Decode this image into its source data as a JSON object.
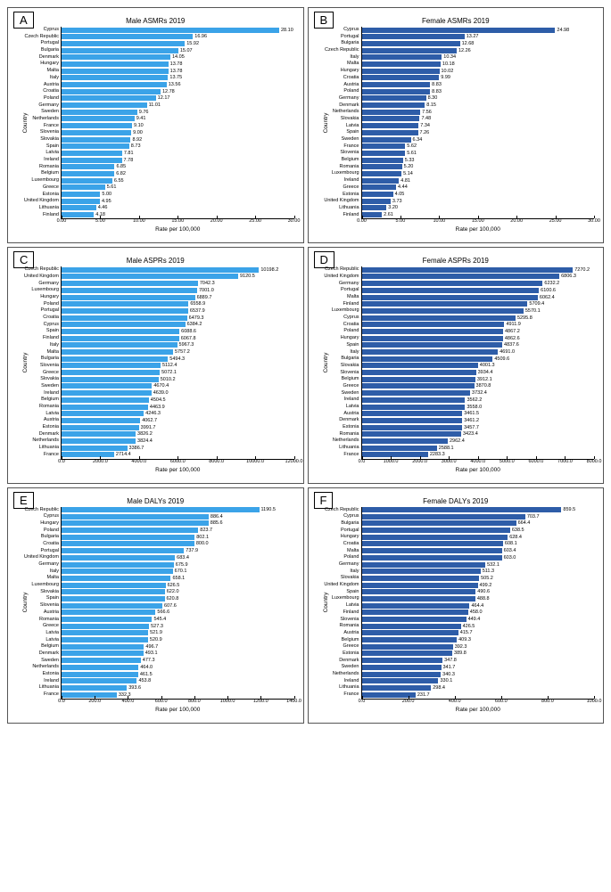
{
  "global": {
    "yaxis_label": "Country",
    "xaxis_label": "Rate per 100,000",
    "bar_color_light": "#3ba3e8",
    "bar_color_dark": "#2e5da8",
    "tick_fontsize": 5.5,
    "title_fontsize": 8,
    "axis_label_fontsize": 6.5
  },
  "panels": [
    {
      "letter": "A",
      "title": "Male ASMRs 2019",
      "bar_color": "#3ba3e8",
      "xmax": 30.0,
      "xtick_step": 5.0,
      "xtick_fmt": "{x:.2f}",
      "val_fmt": "{v:.2f}",
      "data": [
        [
          "Cyprus",
          28.1
        ],
        [
          "Czech Republic",
          16.96
        ],
        [
          "Portugal",
          15.92
        ],
        [
          "Bulgaria",
          15.07
        ],
        [
          "Denmark",
          14.05
        ],
        [
          "Hungary",
          13.78
        ],
        [
          "Malta",
          13.78
        ],
        [
          "Italy",
          13.75
        ],
        [
          "Austria",
          13.56
        ],
        [
          "Croatia",
          12.78
        ],
        [
          "Poland",
          12.17
        ],
        [
          "Germany",
          11.01
        ],
        [
          "Sweden",
          9.76
        ],
        [
          "Netherlands",
          9.41
        ],
        [
          "France",
          9.1
        ],
        [
          "Slovenia",
          9.0
        ],
        [
          "Slovakia",
          8.92
        ],
        [
          "Spain",
          8.73
        ],
        [
          "Latvia",
          7.81
        ],
        [
          "Ireland",
          7.78
        ],
        [
          "Romania",
          6.85
        ],
        [
          "Belgium",
          6.82
        ],
        [
          "Luxembourg",
          6.55
        ],
        [
          "Greece",
          5.61
        ],
        [
          "Estonia",
          5.0
        ],
        [
          "United Kingdom",
          4.95
        ],
        [
          "Lithuania",
          4.46
        ],
        [
          "Finland",
          4.18
        ]
      ]
    },
    {
      "letter": "B",
      "title": "Female ASMRs 2019",
      "bar_color": "#2e5da8",
      "xmax": 30.0,
      "xtick_step": 5.0,
      "xtick_fmt": "{x:.2f}",
      "val_fmt": "{v:.2f}",
      "data": [
        [
          "Cyprus",
          24.98
        ],
        [
          "Portugal",
          13.27
        ],
        [
          "Bulgaria",
          12.68
        ],
        [
          "Czech Republic",
          12.26
        ],
        [
          "Italy",
          10.34
        ],
        [
          "Malta",
          10.18
        ],
        [
          "Hungary",
          10.02
        ],
        [
          "Croatia",
          9.99
        ],
        [
          "Austria",
          8.83
        ],
        [
          "Poland",
          8.83
        ],
        [
          "Germany",
          8.3
        ],
        [
          "Denmark",
          8.15
        ],
        [
          "Netherlands",
          7.56
        ],
        [
          "Slovakia",
          7.48
        ],
        [
          "Latvia",
          7.34
        ],
        [
          "Spain",
          7.26
        ],
        [
          "Sweden",
          6.34
        ],
        [
          "France",
          5.62
        ],
        [
          "Slovenia",
          5.61
        ],
        [
          "Belgium",
          5.33
        ],
        [
          "Romania",
          5.2
        ],
        [
          "Luxembourg",
          5.14
        ],
        [
          "Ireland",
          4.81
        ],
        [
          "Greece",
          4.44
        ],
        [
          "Estonia",
          4.05
        ],
        [
          "United Kingdom",
          3.73
        ],
        [
          "Lithuania",
          3.2
        ],
        [
          "Finland",
          2.61
        ]
      ]
    },
    {
      "letter": "C",
      "title": "Male ASPRs 2019",
      "bar_color": "#3ba3e8",
      "xmax": 12000.0,
      "xtick_step": 2000.0,
      "xtick_fmt": "{x:.1f}",
      "val_fmt": "{v:.1f}",
      "data": [
        [
          "Czech Republic",
          10198.2
        ],
        [
          "United Kingdom",
          9120.5
        ],
        [
          "Germany",
          7042.3
        ],
        [
          "Luxembourg",
          7001.0
        ],
        [
          "Hungary",
          6889.7
        ],
        [
          "Poland",
          6558.9
        ],
        [
          "Portugal",
          6537.9
        ],
        [
          "Croatia",
          6479.3
        ],
        [
          "Cyprus",
          6384.2
        ],
        [
          "Spain",
          6088.6
        ],
        [
          "Finland",
          6067.8
        ],
        [
          "Italy",
          5967.3
        ],
        [
          "Malta",
          5757.2
        ],
        [
          "Bulgaria",
          5494.3
        ],
        [
          "Slovenia",
          5112.4
        ],
        [
          "Greece",
          5072.1
        ],
        [
          "Slovakia",
          5010.2
        ],
        [
          "Sweden",
          4670.4
        ],
        [
          "Ireland",
          4639.0
        ],
        [
          "Belgium",
          4504.5
        ],
        [
          "Romania",
          4463.9
        ],
        [
          "Latvia",
          4246.3
        ],
        [
          "Austria",
          4062.7
        ],
        [
          "Estonia",
          3991.7
        ],
        [
          "Denmark",
          3826.2
        ],
        [
          "Netherlands",
          3824.4
        ],
        [
          "Lithuania",
          3386.7
        ],
        [
          "France",
          2714.4
        ]
      ]
    },
    {
      "letter": "D",
      "title": "Female ASPRs 2019",
      "bar_color": "#2e5da8",
      "xmax": 8000.0,
      "xtick_step": 1000.0,
      "xtick_fmt": "{x:.1f}",
      "val_fmt": "{v:.1f}",
      "data": [
        [
          "Czech Republic",
          7270.2
        ],
        [
          "United Kingdom",
          6806.3
        ],
        [
          "Germany",
          6232.2
        ],
        [
          "Portugal",
          6100.6
        ],
        [
          "Malta",
          6062.4
        ],
        [
          "Finland",
          5709.4
        ],
        [
          "Luxembourg",
          5570.1
        ],
        [
          "Cyprus",
          5295.8
        ],
        [
          "Croatia",
          4911.9
        ],
        [
          "Poland",
          4867.2
        ],
        [
          "Hungary",
          4862.6
        ],
        [
          "Spain",
          4837.6
        ],
        [
          "Italy",
          4691.0
        ],
        [
          "Bulgaria",
          4509.6
        ],
        [
          "Slovakia",
          4001.3
        ],
        [
          "Slovenia",
          3934.4
        ],
        [
          "Belgium",
          3912.1
        ],
        [
          "Greece",
          3870.8
        ],
        [
          "Sweden",
          3732.4
        ],
        [
          "Ireland",
          3562.2
        ],
        [
          "Latvia",
          3558.0
        ],
        [
          "Austria",
          3461.5
        ],
        [
          "Denmark",
          3461.2
        ],
        [
          "Estonia",
          3457.7
        ],
        [
          "Romania",
          3423.4
        ],
        [
          "Netherlands",
          2962.4
        ],
        [
          "Lithuania",
          2588.1
        ],
        [
          "France",
          2283.3
        ]
      ]
    },
    {
      "letter": "E",
      "title": "Male DALYs 2019",
      "bar_color": "#3ba3e8",
      "xmax": 1400.0,
      "xtick_step": 200.0,
      "xtick_fmt": "{x:.1f}",
      "val_fmt": "{v:.1f}",
      "data": [
        [
          "Czech Republic",
          1190.5
        ],
        [
          "Cyprus",
          886.4
        ],
        [
          "Hungary",
          885.6
        ],
        [
          "Poland",
          823.7
        ],
        [
          "Bulgaria",
          802.1
        ],
        [
          "Croatia",
          800.0
        ],
        [
          "Portugal",
          737.9
        ],
        [
          "United Kingdom",
          683.4
        ],
        [
          "Germany",
          675.9
        ],
        [
          "Italy",
          670.1
        ],
        [
          "Malta",
          658.1
        ],
        [
          "Luxembourg",
          626.5
        ],
        [
          "Slovakia",
          622.0
        ],
        [
          "Spain",
          620.8
        ],
        [
          "Slovenia",
          607.6
        ],
        [
          "Austria",
          566.6
        ],
        [
          "Romania",
          545.4
        ],
        [
          "Greece",
          527.3
        ],
        [
          "Latvia",
          521.9
        ],
        [
          "Latvia",
          520.9
        ],
        [
          "Belgium",
          496.7
        ],
        [
          "Denmark",
          493.1
        ],
        [
          "Sweden",
          477.3
        ],
        [
          "Netherlands",
          464.0
        ],
        [
          "Estonia",
          461.5
        ],
        [
          "Ireland",
          453.8
        ],
        [
          "Lithuania",
          393.6
        ],
        [
          "France",
          332.3
        ]
      ]
    },
    {
      "letter": "F",
      "title": "Female DALYs 2019",
      "bar_color": "#2e5da8",
      "xmax": 1000.0,
      "xtick_step": 200.0,
      "xtick_fmt": "{x:.1f}",
      "val_fmt": "{v:.1f}",
      "data": [
        [
          "Czech Republic",
          859.5
        ],
        [
          "Cyprus",
          703.7
        ],
        [
          "Bulgaria",
          664.4
        ],
        [
          "Portugal",
          638.5
        ],
        [
          "Hungary",
          628.4
        ],
        [
          "Croatia",
          608.1
        ],
        [
          "Malta",
          603.4
        ],
        [
          "Poland",
          603.0
        ],
        [
          "Germany",
          532.1
        ],
        [
          "Italy",
          511.3
        ],
        [
          "Slovakia",
          505.2
        ],
        [
          "United Kingdom",
          499.2
        ],
        [
          "Spain",
          490.6
        ],
        [
          "Luxembourg",
          488.8
        ],
        [
          "Latvia",
          464.4
        ],
        [
          "Finland",
          458.0
        ],
        [
          "Slovenia",
          449.4
        ],
        [
          "Romania",
          426.5
        ],
        [
          "Austria",
          415.7
        ],
        [
          "Belgium",
          409.3
        ],
        [
          "Greece",
          392.3
        ],
        [
          "Estonia",
          389.8
        ],
        [
          "Denmark",
          347.8
        ],
        [
          "Sweden",
          341.7
        ],
        [
          "Netherlands",
          340.3
        ],
        [
          "Ireland",
          330.1
        ],
        [
          "Lithuania",
          298.4
        ],
        [
          "France",
          231.7
        ]
      ]
    }
  ]
}
